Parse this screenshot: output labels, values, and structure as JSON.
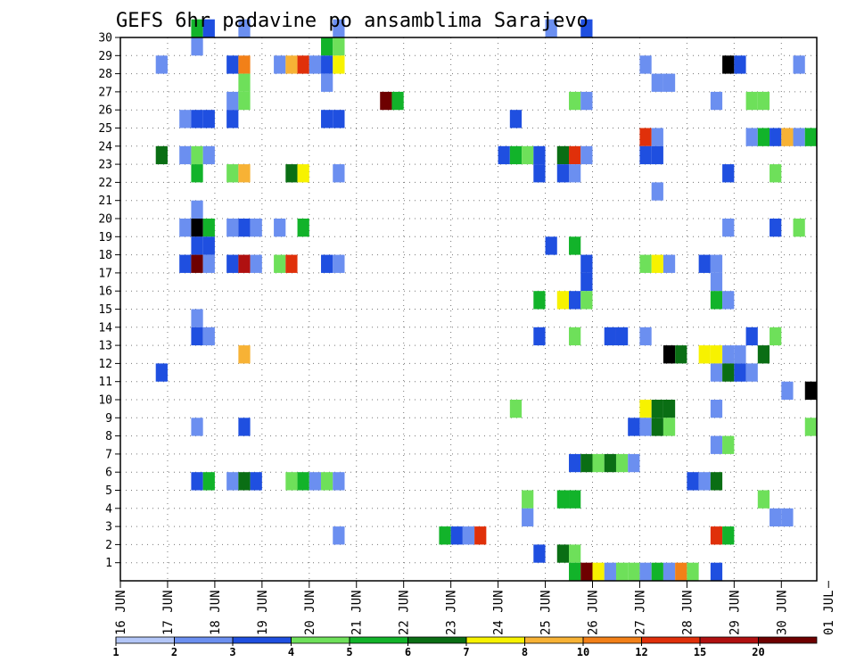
{
  "chart_data": {
    "type": "heatmap",
    "title": "GEFS 6hr padavine po ansamblima Sarajevo",
    "xlabel": "",
    "ylabel": "",
    "grid": true,
    "members": [
      "1",
      "2",
      "3",
      "4",
      "5",
      "6",
      "7",
      "8",
      "9",
      "10",
      "11",
      "12",
      "13",
      "14",
      "15",
      "16",
      "17",
      "18",
      "19",
      "20",
      "21",
      "22",
      "23",
      "24",
      "25",
      "26",
      "27",
      "28",
      "29",
      "30"
    ],
    "ylim": [
      0,
      30
    ],
    "x_ticks": [
      "16 JUN",
      "17 JUN",
      "18 JUN",
      "19 JUN",
      "20 JUN",
      "21 JUN",
      "22 JUN",
      "23 JUN",
      "24 JUN",
      "25 JUN",
      "26 JUN",
      "27 JUN",
      "28 JUN",
      "29 JUN",
      "30 JUN",
      "01 JUL"
    ],
    "xlim_days": [
      0,
      14.75
    ],
    "step_hours": 6,
    "legend": {
      "labels": [
        "1",
        "2",
        "3",
        "4",
        "5",
        "6",
        "7",
        "8",
        "10",
        "12",
        "15",
        "20"
      ],
      "colors": [
        "#b3c6f7",
        "#6b8ff0",
        "#1f4fe0",
        "#6ee05a",
        "#12b32a",
        "#0a6e14",
        "#f7f200",
        "#f7b235",
        "#f28018",
        "#e0300a",
        "#b01010",
        "#6e0000"
      ]
    },
    "points": [
      [
        30,
        1.5,
        4
      ],
      [
        30,
        1.75,
        2
      ],
      [
        30,
        2.5,
        1
      ],
      [
        30,
        4.5,
        1
      ],
      [
        30,
        9,
        1
      ],
      [
        30,
        9.75,
        2
      ],
      [
        29,
        1.5,
        1
      ],
      [
        29,
        4.25,
        4
      ],
      [
        29,
        4.5,
        3
      ],
      [
        28,
        0.75,
        1
      ],
      [
        28,
        2.25,
        2
      ],
      [
        28,
        2.5,
        8
      ],
      [
        28,
        3.25,
        1
      ],
      [
        28,
        3.5,
        7
      ],
      [
        28,
        3.75,
        9
      ],
      [
        28,
        4,
        1
      ],
      [
        28,
        4.25,
        2
      ],
      [
        28,
        4.5,
        6
      ],
      [
        28,
        11,
        1
      ],
      [
        28,
        12.75,
        12
      ],
      [
        28,
        13,
        2
      ],
      [
        28,
        14.25,
        1
      ],
      [
        27,
        2.5,
        3
      ],
      [
        27,
        4.25,
        1
      ],
      [
        27,
        11.25,
        1
      ],
      [
        27,
        11.5,
        1
      ],
      [
        26,
        2.25,
        1
      ],
      [
        26,
        2.5,
        3
      ],
      [
        26,
        5.5,
        11
      ],
      [
        26,
        5.75,
        4
      ],
      [
        26,
        9.5,
        3
      ],
      [
        26,
        9.75,
        1
      ],
      [
        26,
        12.5,
        1
      ],
      [
        26,
        13.25,
        3
      ],
      [
        26,
        13.5,
        3
      ],
      [
        25,
        1.25,
        1
      ],
      [
        25,
        1.5,
        2
      ],
      [
        25,
        1.75,
        2
      ],
      [
        25,
        2.25,
        2
      ],
      [
        25,
        4.25,
        2
      ],
      [
        25,
        4.5,
        2
      ],
      [
        25,
        8.25,
        2
      ],
      [
        24,
        11,
        9
      ],
      [
        24,
        11.25,
        1
      ],
      [
        24,
        13.25,
        1
      ],
      [
        24,
        13.5,
        4
      ],
      [
        24,
        13.75,
        2
      ],
      [
        24,
        14,
        7
      ],
      [
        24,
        14.25,
        1
      ],
      [
        24,
        14.5,
        4
      ],
      [
        23,
        0.75,
        5
      ],
      [
        23,
        1.25,
        1
      ],
      [
        23,
        1.5,
        3
      ],
      [
        23,
        1.75,
        1
      ],
      [
        23,
        8,
        2
      ],
      [
        23,
        8.25,
        4
      ],
      [
        23,
        8.5,
        3
      ],
      [
        23,
        8.75,
        2
      ],
      [
        23,
        9.25,
        5
      ],
      [
        23,
        9.5,
        9
      ],
      [
        23,
        9.75,
        1
      ],
      [
        23,
        11,
        2
      ],
      [
        23,
        11.25,
        2
      ],
      [
        22,
        1.5,
        4
      ],
      [
        22,
        2.25,
        3
      ],
      [
        22,
        2.5,
        7
      ],
      [
        22,
        3.5,
        5
      ],
      [
        22,
        3.75,
        6
      ],
      [
        22,
        4.5,
        1
      ],
      [
        22,
        8.75,
        2
      ],
      [
        22,
        9.25,
        2
      ],
      [
        22,
        9.5,
        1
      ],
      [
        22,
        12.75,
        2
      ],
      [
        22,
        13.75,
        3
      ],
      [
        21,
        11.25,
        1
      ],
      [
        20,
        1.5,
        1
      ],
      [
        19,
        1.25,
        1
      ],
      [
        19,
        1.5,
        12
      ],
      [
        19,
        1.75,
        4
      ],
      [
        19,
        2.25,
        1
      ],
      [
        19,
        2.5,
        2
      ],
      [
        19,
        2.75,
        1
      ],
      [
        19,
        3.25,
        1
      ],
      [
        19,
        3.75,
        4
      ],
      [
        19,
        12.75,
        1
      ],
      [
        19,
        13.75,
        2
      ],
      [
        19,
        14.25,
        3
      ],
      [
        18,
        1.5,
        2
      ],
      [
        18,
        1.75,
        2
      ],
      [
        18,
        9,
        2
      ],
      [
        18,
        9.5,
        4
      ],
      [
        17,
        1.25,
        2
      ],
      [
        17,
        1.5,
        11
      ],
      [
        17,
        1.75,
        1
      ],
      [
        17,
        2.25,
        2
      ],
      [
        17,
        2.5,
        10
      ],
      [
        17,
        2.75,
        1
      ],
      [
        17,
        3.25,
        3
      ],
      [
        17,
        3.5,
        9
      ],
      [
        17,
        4.25,
        2
      ],
      [
        17,
        4.5,
        1
      ],
      [
        17,
        9.75,
        2
      ],
      [
        17,
        11,
        3
      ],
      [
        17,
        11.25,
        6
      ],
      [
        17,
        11.5,
        1
      ],
      [
        17,
        12.25,
        2
      ],
      [
        17,
        12.5,
        1
      ],
      [
        16,
        9.75,
        2
      ],
      [
        16,
        12.5,
        1
      ],
      [
        15,
        8.75,
        4
      ],
      [
        15,
        9.25,
        6
      ],
      [
        15,
        9.5,
        2
      ],
      [
        15,
        9.75,
        3
      ],
      [
        15,
        12.5,
        4
      ],
      [
        15,
        12.75,
        1
      ],
      [
        14,
        1.5,
        1
      ],
      [
        13,
        1.5,
        2
      ],
      [
        13,
        1.75,
        1
      ],
      [
        13,
        8.75,
        2
      ],
      [
        13,
        9.5,
        3
      ],
      [
        13,
        10.25,
        2
      ],
      [
        13,
        10.5,
        2
      ],
      [
        13,
        11,
        1
      ],
      [
        13,
        13.25,
        2
      ],
      [
        13,
        13.75,
        3
      ],
      [
        12,
        2.5,
        7
      ],
      [
        12,
        11.5,
        12
      ],
      [
        12,
        11.75,
        5
      ],
      [
        12,
        12.25,
        6
      ],
      [
        12,
        12.5,
        6
      ],
      [
        12,
        12.75,
        1
      ],
      [
        12,
        13,
        1
      ],
      [
        12,
        13.5,
        5
      ],
      [
        11,
        0.75,
        2
      ],
      [
        11,
        12.5,
        1
      ],
      [
        11,
        12.75,
        5
      ],
      [
        11,
        13,
        2
      ],
      [
        11,
        13.25,
        1
      ],
      [
        10,
        14,
        1
      ],
      [
        10,
        14.5,
        12
      ],
      [
        9,
        8.25,
        3
      ],
      [
        9,
        11,
        6
      ],
      [
        9,
        11.25,
        5
      ],
      [
        9,
        11.5,
        5
      ],
      [
        9,
        12.5,
        1
      ],
      [
        8,
        1.5,
        1
      ],
      [
        8,
        2.5,
        2
      ],
      [
        8,
        10.75,
        2
      ],
      [
        8,
        11,
        1
      ],
      [
        8,
        11.25,
        5
      ],
      [
        8,
        11.5,
        3
      ],
      [
        8,
        14.5,
        3
      ],
      [
        8,
        14.75,
        2
      ],
      [
        7,
        12.5,
        1
      ],
      [
        7,
        12.75,
        3
      ],
      [
        6,
        9.5,
        2
      ],
      [
        6,
        9.75,
        5
      ],
      [
        6,
        10,
        3
      ],
      [
        6,
        10.25,
        5
      ],
      [
        6,
        10.5,
        3
      ],
      [
        6,
        10.75,
        1
      ],
      [
        5,
        1.5,
        2
      ],
      [
        5,
        1.75,
        4
      ],
      [
        5,
        2.25,
        1
      ],
      [
        5,
        2.5,
        5
      ],
      [
        5,
        2.75,
        2
      ],
      [
        5,
        3.5,
        3
      ],
      [
        5,
        3.75,
        4
      ],
      [
        5,
        4,
        1
      ],
      [
        5,
        4.25,
        3
      ],
      [
        5,
        4.5,
        1
      ],
      [
        5,
        12,
        2
      ],
      [
        5,
        12.25,
        1
      ],
      [
        5,
        12.5,
        5
      ],
      [
        4,
        8.5,
        3
      ],
      [
        4,
        9.25,
        4
      ],
      [
        4,
        9.5,
        4
      ],
      [
        4,
        13.5,
        3
      ],
      [
        3,
        8.5,
        1
      ],
      [
        3,
        13.75,
        1
      ],
      [
        3,
        14,
        1
      ],
      [
        2,
        4.5,
        1
      ],
      [
        2,
        6.75,
        4
      ],
      [
        2,
        7,
        2
      ],
      [
        2,
        7.25,
        1
      ],
      [
        2,
        7.5,
        9
      ],
      [
        2,
        12.5,
        9
      ],
      [
        2,
        12.75,
        4
      ],
      [
        1,
        8.75,
        2
      ],
      [
        1,
        9.25,
        5
      ],
      [
        1,
        9.5,
        3
      ],
      [
        0,
        9.5,
        4
      ],
      [
        0,
        9.75,
        11
      ],
      [
        0,
        10,
        6
      ],
      [
        0,
        10.25,
        1
      ],
      [
        0,
        10.5,
        3
      ],
      [
        0,
        10.75,
        3
      ],
      [
        0,
        11,
        1
      ],
      [
        0,
        11.25,
        4
      ],
      [
        0,
        11.5,
        1
      ],
      [
        0,
        11.75,
        8
      ],
      [
        0,
        12,
        3
      ],
      [
        0,
        12.5,
        2
      ]
    ]
  }
}
